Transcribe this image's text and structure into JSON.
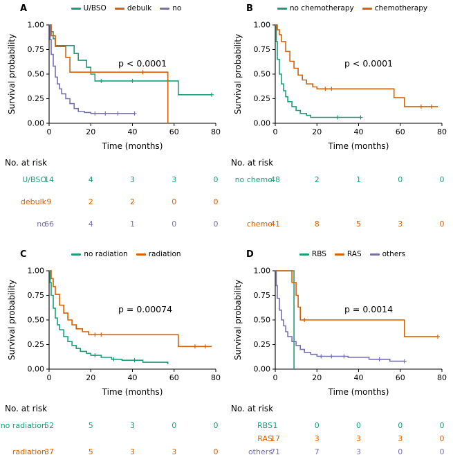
{
  "figure": {
    "background": "#ffffff"
  },
  "palette": {
    "teal": "#1b9e77",
    "orange": "#d95f02",
    "purple": "#7570b3",
    "axis": "#000000"
  },
  "chart_data": [
    {
      "type": "line",
      "subtype": "kaplan-meier-step",
      "panel": "A",
      "pvalue": "p < 0.0001",
      "xlabel": "Time (months)",
      "ylabel": "Survival probability",
      "xlim": [
        0,
        80
      ],
      "ylim": [
        0,
        1
      ],
      "xticks": [
        0,
        20,
        40,
        60,
        80
      ],
      "ytick_labels": [
        "0.00",
        "0.25",
        "0.50",
        "0.75",
        "1.00"
      ],
      "grid": false,
      "legend_position": "top",
      "legend": [
        {
          "label": "U/BSO",
          "color": "#1b9e77"
        },
        {
          "label": "debulk",
          "color": "#d95f02"
        },
        {
          "label": "no",
          "color": "#7570b3"
        }
      ],
      "series": [
        {
          "name": "U/BSO",
          "color": "#1b9e77",
          "x": [
            0,
            1,
            2,
            3,
            12,
            14,
            18,
            20,
            22,
            62,
            78
          ],
          "y": [
            1.0,
            0.93,
            0.86,
            0.79,
            0.71,
            0.64,
            0.57,
            0.5,
            0.43,
            0.29,
            0.29
          ],
          "censors": [
            [
              25,
              0.43
            ],
            [
              40,
              0.43
            ],
            [
              57,
              0.43
            ],
            [
              78,
              0.29
            ]
          ]
        },
        {
          "name": "debulk",
          "color": "#d95f02",
          "x": [
            0,
            1,
            3,
            8,
            10,
            57
          ],
          "y": [
            1.0,
            0.89,
            0.78,
            0.67,
            0.52,
            0.0
          ],
          "censors": [
            [
              20,
              0.52
            ],
            [
              45,
              0.52
            ]
          ]
        },
        {
          "name": "no",
          "color": "#7570b3",
          "x": [
            0,
            0.5,
            1,
            2,
            3,
            4,
            5,
            6,
            8,
            10,
            12,
            14,
            17,
            20,
            41
          ],
          "y": [
            1.0,
            0.85,
            0.7,
            0.58,
            0.47,
            0.4,
            0.35,
            0.3,
            0.25,
            0.2,
            0.15,
            0.12,
            0.11,
            0.1,
            0.1
          ],
          "censors": [
            [
              22,
              0.1
            ],
            [
              27,
              0.1
            ],
            [
              33,
              0.1
            ],
            [
              41,
              0.1
            ]
          ]
        }
      ],
      "risk_table": {
        "title": "No. at risk",
        "times": [
          0,
          20,
          40,
          60,
          80
        ],
        "rows": [
          {
            "label": "U/BSO",
            "color": "#1b9e77",
            "counts": [
              14,
              4,
              3,
              3,
              0
            ]
          },
          {
            "label": "debulk",
            "color": "#d95f02",
            "counts": [
              9,
              2,
              2,
              0,
              0
            ]
          },
          {
            "label": "no",
            "color": "#7570b3",
            "counts": [
              66,
              4,
              1,
              0,
              0
            ]
          }
        ]
      }
    },
    {
      "type": "line",
      "subtype": "kaplan-meier-step",
      "panel": "B",
      "pvalue": "p < 0.0001",
      "xlabel": "Time (months)",
      "ylabel": "Survival probability",
      "xlim": [
        0,
        80
      ],
      "ylim": [
        0,
        1
      ],
      "xticks": [
        0,
        20,
        40,
        60,
        80
      ],
      "ytick_labels": [
        "0.00",
        "0.25",
        "0.50",
        "0.75",
        "1.00"
      ],
      "grid": false,
      "legend_position": "top",
      "legend": [
        {
          "label": "no chemotherapy",
          "color": "#1b9e77"
        },
        {
          "label": "chemotherapy",
          "color": "#d95f02"
        }
      ],
      "series": [
        {
          "name": "no chemotherapy",
          "color": "#1b9e77",
          "x": [
            0,
            0.5,
            1,
            2,
            3,
            4,
            5,
            6,
            8,
            10,
            12,
            15,
            17,
            41
          ],
          "y": [
            1.0,
            0.83,
            0.65,
            0.5,
            0.4,
            0.33,
            0.27,
            0.22,
            0.17,
            0.13,
            0.1,
            0.08,
            0.06,
            0.06
          ],
          "censors": [
            [
              30,
              0.06
            ],
            [
              41,
              0.06
            ]
          ]
        },
        {
          "name": "chemotherapy",
          "color": "#d95f02",
          "x": [
            0,
            1,
            2,
            3,
            5,
            7,
            9,
            11,
            13,
            15,
            18,
            20,
            57,
            62,
            78
          ],
          "y": [
            1.0,
            0.95,
            0.9,
            0.83,
            0.73,
            0.63,
            0.56,
            0.49,
            0.44,
            0.4,
            0.37,
            0.35,
            0.26,
            0.17,
            0.17
          ],
          "censors": [
            [
              24,
              0.35
            ],
            [
              27,
              0.35
            ],
            [
              70,
              0.17
            ],
            [
              75,
              0.17
            ]
          ]
        }
      ],
      "risk_table": {
        "title": "No. at risk",
        "times": [
          0,
          20,
          40,
          60,
          80
        ],
        "rows": [
          {
            "label": "no chemo",
            "color": "#1b9e77",
            "counts": [
              48,
              2,
              1,
              0,
              0
            ]
          },
          {
            "label": "chemo",
            "color": "#d95f02",
            "counts": [
              41,
              8,
              5,
              3,
              0
            ]
          }
        ]
      }
    },
    {
      "type": "line",
      "subtype": "kaplan-meier-step",
      "panel": "C",
      "pvalue": "p = 0.00074",
      "xlabel": "Time (months)",
      "ylabel": "Survival probability",
      "xlim": [
        0,
        80
      ],
      "ylim": [
        0,
        1
      ],
      "xticks": [
        0,
        20,
        40,
        60,
        80
      ],
      "ytick_labels": [
        "0.00",
        "0.25",
        "0.50",
        "0.75",
        "1.00"
      ],
      "grid": false,
      "legend_position": "top",
      "legend": [
        {
          "label": "no radiation",
          "color": "#1b9e77"
        },
        {
          "label": "radiation",
          "color": "#d95f02"
        }
      ],
      "series": [
        {
          "name": "no radiation",
          "color": "#1b9e77",
          "x": [
            0,
            0.5,
            1,
            2,
            3,
            4,
            5,
            7,
            9,
            11,
            13,
            15,
            18,
            20,
            25,
            30,
            35,
            45,
            57
          ],
          "y": [
            1.0,
            0.88,
            0.75,
            0.62,
            0.52,
            0.45,
            0.4,
            0.33,
            0.28,
            0.24,
            0.21,
            0.18,
            0.16,
            0.14,
            0.12,
            0.1,
            0.09,
            0.07,
            0.05
          ],
          "censors": [
            [
              22,
              0.14
            ],
            [
              31,
              0.1
            ],
            [
              41,
              0.09
            ]
          ]
        },
        {
          "name": "radiation",
          "color": "#d95f02",
          "x": [
            0,
            1,
            2,
            3,
            5,
            7,
            9,
            11,
            13,
            16,
            19,
            62,
            78
          ],
          "y": [
            1.0,
            0.92,
            0.84,
            0.76,
            0.65,
            0.57,
            0.5,
            0.45,
            0.41,
            0.38,
            0.35,
            0.23,
            0.23
          ],
          "censors": [
            [
              22,
              0.35
            ],
            [
              25,
              0.35
            ],
            [
              70,
              0.23
            ],
            [
              75,
              0.23
            ]
          ]
        }
      ],
      "risk_table": {
        "title": "No. at risk",
        "times": [
          0,
          20,
          40,
          60,
          80
        ],
        "rows": [
          {
            "label": "no radiation",
            "color": "#1b9e77",
            "counts": [
              52,
              5,
              3,
              0,
              0
            ]
          },
          {
            "label": "radiation",
            "color": "#d95f02",
            "counts": [
              37,
              5,
              3,
              3,
              0
            ]
          }
        ]
      }
    },
    {
      "type": "line",
      "subtype": "kaplan-meier-step",
      "panel": "D",
      "pvalue": "p = 0.0014",
      "xlabel": "Time (months)",
      "ylabel": "Survival probability",
      "xlim": [
        0,
        80
      ],
      "ylim": [
        0,
        1
      ],
      "xticks": [
        0,
        20,
        40,
        60,
        80
      ],
      "ytick_labels": [
        "0.00",
        "0.25",
        "0.50",
        "0.75",
        "1.00"
      ],
      "grid": false,
      "legend_position": "top",
      "legend": [
        {
          "label": "RBS",
          "color": "#1b9e77"
        },
        {
          "label": "RAS",
          "color": "#d95f02"
        },
        {
          "label": "others",
          "color": "#7570b3"
        }
      ],
      "series": [
        {
          "name": "RBS",
          "color": "#1b9e77",
          "x": [
            0,
            9
          ],
          "y": [
            1.0,
            0.0
          ],
          "censors": []
        },
        {
          "name": "RAS",
          "color": "#d95f02",
          "x": [
            0,
            8,
            10,
            11,
            12,
            62,
            78
          ],
          "y": [
            1.0,
            0.88,
            0.75,
            0.63,
            0.5,
            0.33,
            0.33
          ],
          "censors": [
            [
              14,
              0.5
            ],
            [
              78,
              0.33
            ]
          ]
        },
        {
          "name": "others",
          "color": "#7570b3",
          "x": [
            0,
            0.5,
            1,
            2,
            3,
            4,
            5,
            6,
            8,
            10,
            12,
            14,
            17,
            20,
            35,
            45,
            55,
            62
          ],
          "y": [
            1.0,
            0.85,
            0.72,
            0.6,
            0.5,
            0.44,
            0.38,
            0.33,
            0.28,
            0.24,
            0.2,
            0.17,
            0.15,
            0.13,
            0.12,
            0.1,
            0.08,
            0.08
          ],
          "censors": [
            [
              22,
              0.13
            ],
            [
              27,
              0.13
            ],
            [
              33,
              0.13
            ],
            [
              50,
              0.1
            ],
            [
              62,
              0.08
            ]
          ]
        }
      ],
      "risk_table": {
        "title": "No. at risk",
        "times": [
          0,
          20,
          40,
          60,
          80
        ],
        "rows": [
          {
            "label": "RBS",
            "color": "#1b9e77",
            "counts": [
              1,
              0,
              0,
              0,
              0
            ]
          },
          {
            "label": "RAS",
            "color": "#d95f02",
            "counts": [
              17,
              3,
              3,
              3,
              0
            ]
          },
          {
            "label": "others",
            "color": "#7570b3",
            "counts": [
              71,
              7,
              3,
              0,
              0
            ]
          }
        ]
      }
    }
  ]
}
